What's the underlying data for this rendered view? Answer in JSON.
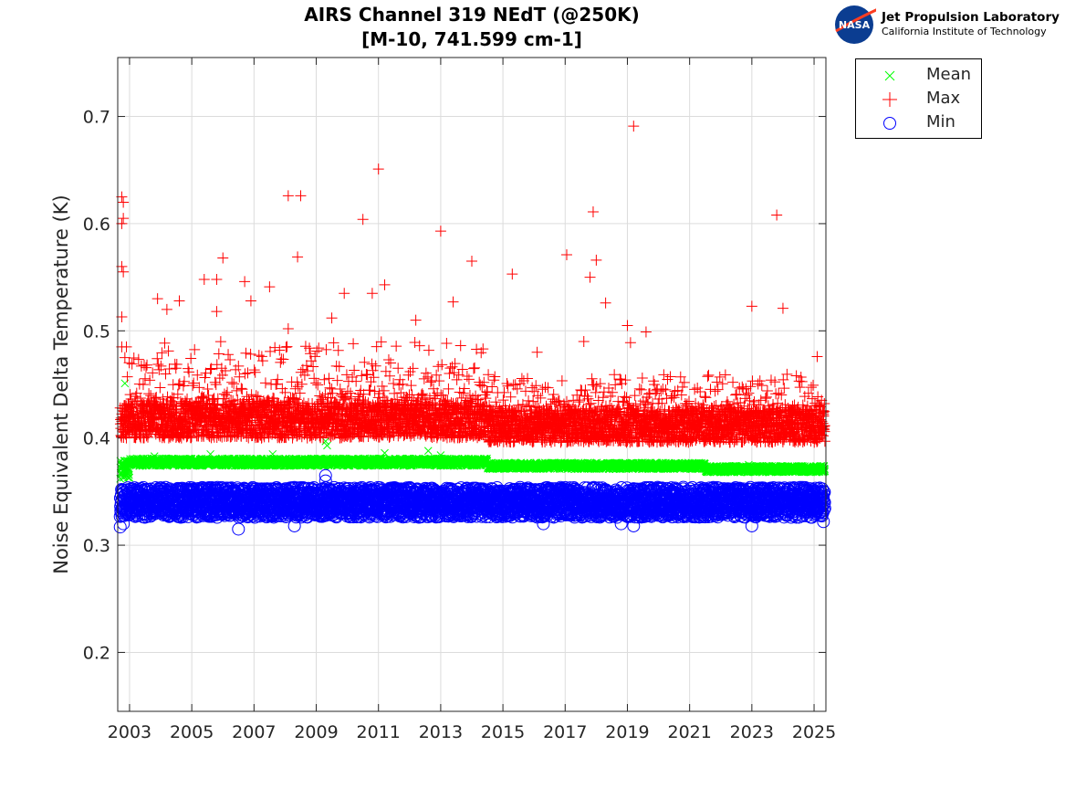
{
  "chart_data": {
    "type": "scatter",
    "title": "AIRS Channel 319 NEdT (@250K)",
    "subtitle": "[M-10, 741.599 cm-1]",
    "xlabel": "",
    "ylabel": "Noise Equivalent Delta Temperature (K)",
    "xlim": [
      2002.62,
      2025.38
    ],
    "ylim": [
      0.145,
      0.755
    ],
    "xticks": [
      "2003",
      "2005",
      "2007",
      "2009",
      "2011",
      "2013",
      "2015",
      "2017",
      "2019",
      "2021",
      "2023",
      "2025"
    ],
    "yticks": [
      "0.2",
      "0.3",
      "0.4",
      "0.5",
      "0.6",
      "0.7"
    ],
    "grid": true,
    "legend_position": "outside-top-right",
    "series": [
      {
        "name": "Mean",
        "marker": "x",
        "color": "#00ff00",
        "dense_band": [
          {
            "x": [
              2002.7,
              2003.0
            ],
            "y": [
              0.362,
              0.38
            ]
          },
          {
            "x": [
              2003.0,
              2014.5
            ],
            "y": [
              0.374,
              0.381
            ]
          },
          {
            "x": [
              2014.5,
              2021.5
            ],
            "y": [
              0.371,
              0.377
            ]
          },
          {
            "x": [
              2021.5,
              2025.35
            ],
            "y": [
              0.368,
              0.374
            ]
          }
        ],
        "points": [
          [
            2002.85,
            0.451
          ],
          [
            2003.8,
            0.383
          ],
          [
            2005.6,
            0.385
          ],
          [
            2007.6,
            0.385
          ],
          [
            2009.3,
            0.397
          ],
          [
            2009.35,
            0.393
          ],
          [
            2011.2,
            0.386
          ],
          [
            2012.6,
            0.388
          ],
          [
            2013.0,
            0.384
          ],
          [
            2022.9,
            0.375
          ]
        ]
      },
      {
        "name": "Max",
        "marker": "+",
        "color": "#ff0000",
        "dense_band": [
          {
            "x": [
              2002.7,
              2014.5
            ],
            "y": [
              0.4,
              0.432
            ]
          },
          {
            "x": [
              2002.9,
              2014.5
            ],
            "y": [
              0.432,
              0.49
            ],
            "sparse": true
          },
          {
            "x": [
              2014.5,
              2025.35
            ],
            "y": [
              0.396,
              0.425
            ]
          },
          {
            "x": [
              2014.5,
              2025.35
            ],
            "y": [
              0.425,
              0.46
            ],
            "sparse": true
          }
        ],
        "points": [
          [
            2002.75,
            0.625
          ],
          [
            2002.8,
            0.62
          ],
          [
            2002.75,
            0.6
          ],
          [
            2002.8,
            0.605
          ],
          [
            2002.75,
            0.56
          ],
          [
            2002.8,
            0.555
          ],
          [
            2002.75,
            0.513
          ],
          [
            2002.75,
            0.485
          ],
          [
            2002.85,
            0.475
          ],
          [
            2003.9,
            0.53
          ],
          [
            2004.2,
            0.52
          ],
          [
            2004.6,
            0.528
          ],
          [
            2005.4,
            0.548
          ],
          [
            2005.8,
            0.548
          ],
          [
            2005.8,
            0.518
          ],
          [
            2006.0,
            0.568
          ],
          [
            2006.7,
            0.546
          ],
          [
            2006.9,
            0.528
          ],
          [
            2007.5,
            0.541
          ],
          [
            2008.1,
            0.626
          ],
          [
            2008.5,
            0.626
          ],
          [
            2008.4,
            0.569
          ],
          [
            2008.1,
            0.502
          ],
          [
            2009.5,
            0.512
          ],
          [
            2009.9,
            0.535
          ],
          [
            2010.5,
            0.604
          ],
          [
            2010.8,
            0.535
          ],
          [
            2011.0,
            0.651
          ],
          [
            2011.2,
            0.543
          ],
          [
            2012.2,
            0.51
          ],
          [
            2013.0,
            0.593
          ],
          [
            2013.4,
            0.527
          ],
          [
            2014.0,
            0.565
          ],
          [
            2015.3,
            0.553
          ],
          [
            2016.1,
            0.48
          ],
          [
            2017.05,
            0.571
          ],
          [
            2017.6,
            0.49
          ],
          [
            2017.8,
            0.55
          ],
          [
            2017.9,
            0.611
          ],
          [
            2018.0,
            0.566
          ],
          [
            2018.3,
            0.526
          ],
          [
            2019.0,
            0.505
          ],
          [
            2019.1,
            0.489
          ],
          [
            2019.2,
            0.691
          ],
          [
            2019.6,
            0.499
          ],
          [
            2023.0,
            0.523
          ],
          [
            2023.8,
            0.608
          ],
          [
            2024.0,
            0.521
          ],
          [
            2025.1,
            0.476
          ]
        ]
      },
      {
        "name": "Min",
        "marker": "o",
        "color": "#0000ff",
        "dense_band": [
          {
            "x": [
              2002.7,
              2025.35
            ],
            "y": [
              0.326,
              0.354
            ]
          }
        ],
        "points": [
          [
            2002.7,
            0.317
          ],
          [
            2002.8,
            0.32
          ],
          [
            2006.5,
            0.315
          ],
          [
            2008.3,
            0.318
          ],
          [
            2009.3,
            0.36
          ],
          [
            2009.3,
            0.365
          ],
          [
            2016.3,
            0.32
          ],
          [
            2018.8,
            0.32
          ],
          [
            2019.2,
            0.318
          ],
          [
            2020.8,
            0.354
          ],
          [
            2023.0,
            0.318
          ],
          [
            2025.3,
            0.322
          ]
        ]
      }
    ]
  },
  "logo": {
    "line1": "Jet Propulsion Laboratory",
    "line2": "California Institute of Technology",
    "badge": "NASA"
  }
}
